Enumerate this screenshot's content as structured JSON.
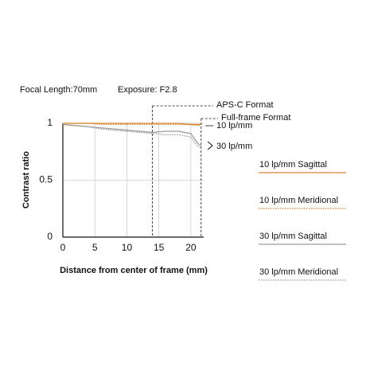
{
  "header": {
    "focal_length": "Focal Length:70mm",
    "exposure": "Exposure: F2.8"
  },
  "chart_data": {
    "type": "line",
    "x_label": "Distance from center of frame (mm)",
    "y_label": "Contrast ratio",
    "x": [
      0,
      2,
      4,
      6,
      8,
      10,
      12,
      14,
      16,
      18,
      20,
      21,
      21.6
    ],
    "series": [
      {
        "name": "10 lp/mm Sagittal",
        "color": "#d9822b",
        "dashed": false,
        "values": [
          1,
          1,
          1,
          1,
          1,
          1,
          1,
          1,
          1,
          1,
          0.99,
          0.99,
          0.99
        ]
      },
      {
        "name": "10 lp/mm Meridional",
        "color": "#d9822b",
        "dashed": true,
        "values": [
          1,
          1,
          1,
          0.99,
          0.99,
          0.99,
          0.99,
          0.99,
          0.99,
          0.99,
          0.99,
          0.98,
          0.98
        ]
      },
      {
        "name": "30 lp/mm Sagittal",
        "color": "#9a9a9a",
        "dashed": false,
        "values": [
          0.99,
          0.98,
          0.97,
          0.96,
          0.95,
          0.94,
          0.93,
          0.92,
          0.93,
          0.93,
          0.91,
          0.83,
          0.8
        ]
      },
      {
        "name": "30 lp/mm Meridional",
        "color": "#9a9a9a",
        "dashed": true,
        "values": [
          0.99,
          0.98,
          0.97,
          0.95,
          0.94,
          0.93,
          0.92,
          0.91,
          0.9,
          0.9,
          0.88,
          0.8,
          0.78
        ]
      }
    ],
    "xlim": [
      0,
      22
    ],
    "ylim": [
      0,
      1
    ],
    "xticks": [
      0,
      5,
      10,
      15,
      20
    ],
    "yticks": [
      0,
      0.5,
      1
    ],
    "grid": true,
    "format_lines": [
      {
        "label": "APS-C Format",
        "x": 14
      },
      {
        "label": "Full-frame Format",
        "x": 21.6
      }
    ],
    "curve_labels": [
      "10 lp/mm",
      "30 lp/mm"
    ]
  }
}
